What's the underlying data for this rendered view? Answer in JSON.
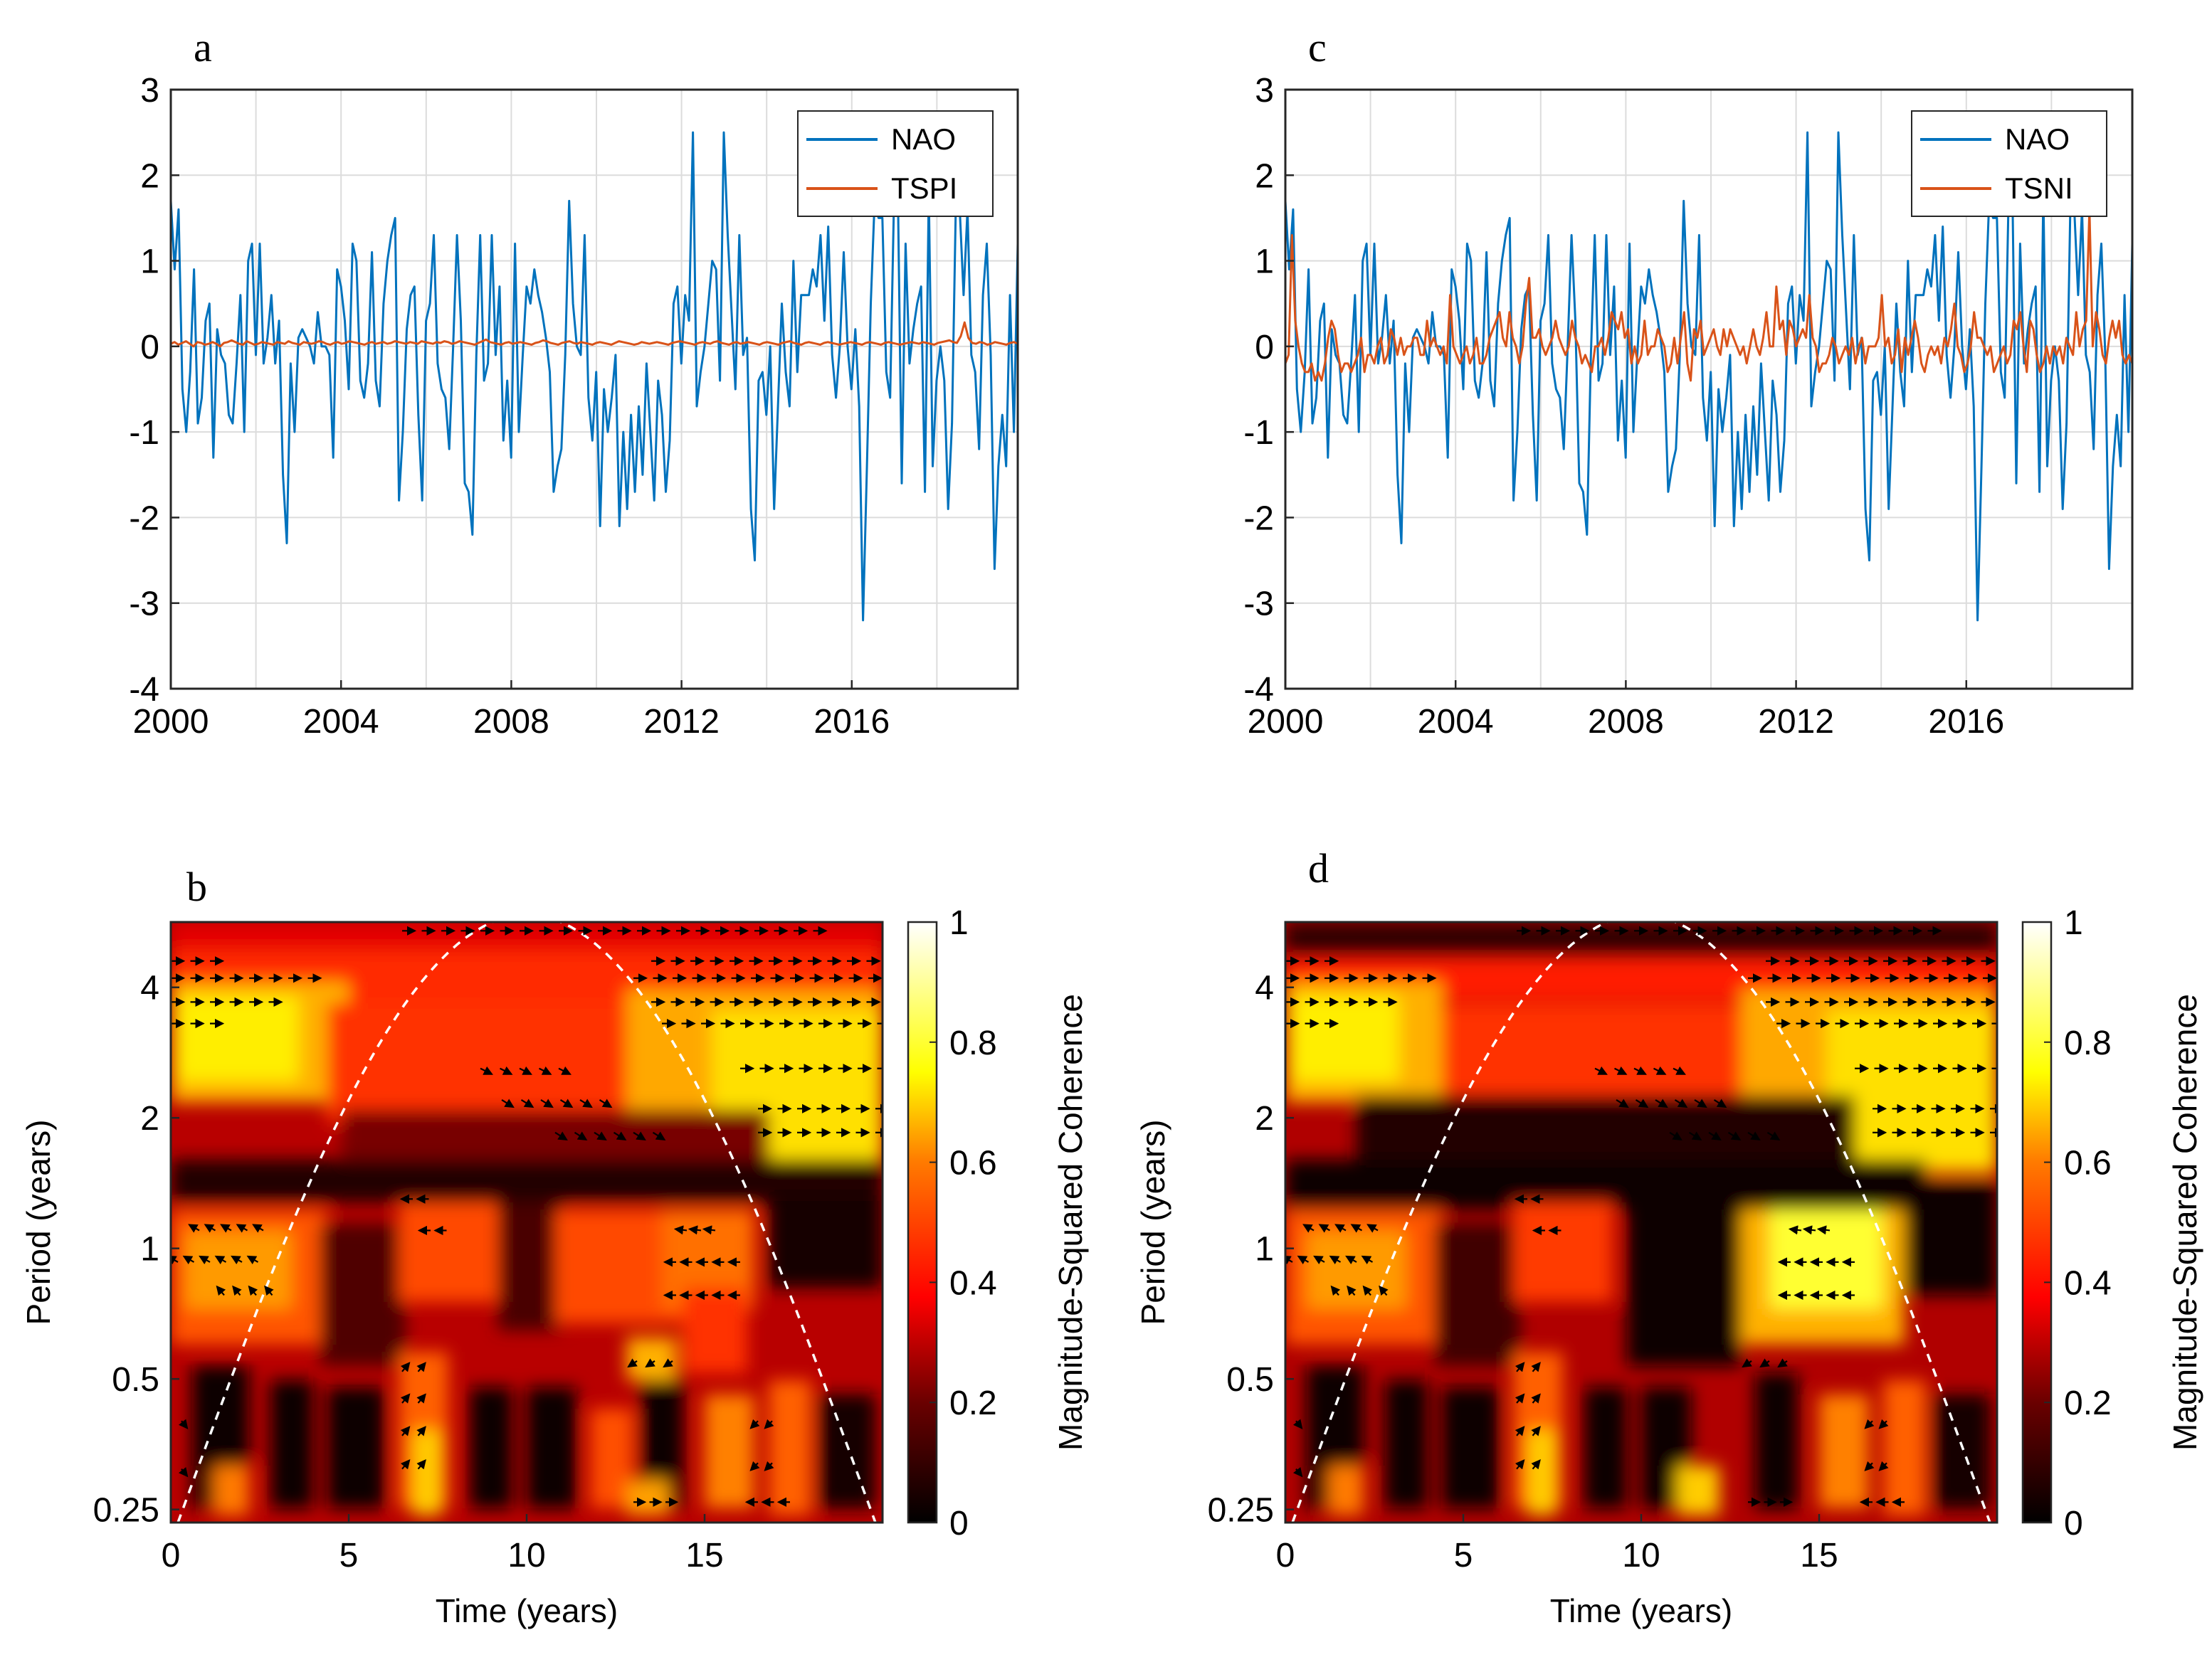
{
  "figure": {
    "description_free": true
  },
  "colors": {
    "nao": "#0072BD",
    "index": "#D95319",
    "grid": "#dcdcdc",
    "cone": "#ffffff"
  },
  "chart_data": [
    {
      "id": "a",
      "panel_label": "a",
      "type": "line",
      "xlim": [
        2000,
        2019.9
      ],
      "ylim": [
        -4,
        3
      ],
      "xticks": [
        2000,
        2004,
        2008,
        2012,
        2016
      ],
      "xtick_labels": [
        "2000",
        "2004",
        "2008",
        "2012",
        "2016"
      ],
      "yticks": [
        -4,
        -3,
        -2,
        -1,
        0,
        1,
        2,
        3
      ],
      "ytick_labels": [
        "-4",
        "-3",
        "-2",
        "-1",
        "0",
        "1",
        "2",
        "3"
      ],
      "grid": true,
      "legend_position": "top-right",
      "series": [
        {
          "name": "NAO",
          "color_key": "nao"
        },
        {
          "name": "TSPI",
          "color_key": "index"
        }
      ]
    },
    {
      "id": "c",
      "panel_label": "c",
      "type": "line",
      "xlim": [
        2000,
        2019.9
      ],
      "ylim": [
        -4,
        3
      ],
      "xticks": [
        2000,
        2004,
        2008,
        2012,
        2016
      ],
      "xtick_labels": [
        "2000",
        "2004",
        "2008",
        "2012",
        "2016"
      ],
      "yticks": [
        -4,
        -3,
        -2,
        -1,
        0,
        1,
        2,
        3
      ],
      "ytick_labels": [
        "-4",
        "-3",
        "-2",
        "-1",
        "0",
        "1",
        "2",
        "3"
      ],
      "grid": true,
      "legend_position": "top-right",
      "series": [
        {
          "name": "NAO",
          "color_key": "nao"
        },
        {
          "name": "TSNI",
          "color_key": "index"
        }
      ]
    },
    {
      "id": "b",
      "panel_label": "b",
      "type": "heatmap",
      "xlabel": "Time (years)",
      "ylabel": "Period (years)",
      "xlim": [
        0,
        20
      ],
      "xticks": [
        0,
        5,
        10,
        15
      ],
      "xtick_labels": [
        "0",
        "5",
        "10",
        "15"
      ],
      "ylim_log2": [
        -2.1,
        2.5
      ],
      "yticks": [
        0.25,
        0.5,
        1,
        2,
        4
      ],
      "ytick_labels": [
        "0.25",
        "0.5",
        "1",
        "2",
        "4"
      ],
      "colorbar_label": "Magnitude-Squared Coherence",
      "colorbar_ticks": [
        0,
        0.2,
        0.4,
        0.6,
        0.8,
        1
      ],
      "colorbar_tick_labels": [
        "0",
        "0.2",
        "0.4",
        "0.6",
        "0.8",
        "1"
      ],
      "cone_of_influence": "dashed white"
    },
    {
      "id": "d",
      "panel_label": "d",
      "type": "heatmap",
      "xlabel": "Time (years)",
      "ylabel": "Period (years)",
      "xlim": [
        0,
        20
      ],
      "xticks": [
        0,
        5,
        10,
        15
      ],
      "xtick_labels": [
        "0",
        "5",
        "10",
        "15"
      ],
      "ylim_log2": [
        -2.1,
        2.5
      ],
      "yticks": [
        0.25,
        0.5,
        1,
        2,
        4
      ],
      "ytick_labels": [
        "0.25",
        "0.5",
        "1",
        "2",
        "4"
      ],
      "colorbar_label": "Magnitude-Squared Coherence",
      "colorbar_ticks": [
        0,
        0.2,
        0.4,
        0.6,
        0.8,
        1
      ],
      "colorbar_tick_labels": [
        "0",
        "0.2",
        "0.4",
        "0.6",
        "0.8",
        "1"
      ],
      "cone_of_influence": "dashed white"
    }
  ],
  "series_values": {
    "nao": [
      1.7,
      0.9,
      1.6,
      -0.5,
      -1.0,
      -0.3,
      0.9,
      -0.9,
      -0.6,
      0.3,
      0.5,
      -1.3,
      0.2,
      -0.1,
      -0.2,
      -0.8,
      -0.9,
      -0.2,
      0.6,
      -1.0,
      1.0,
      1.2,
      -0.1,
      1.2,
      -0.2,
      0.1,
      0.6,
      -0.2,
      0.3,
      -1.5,
      -2.3,
      -0.2,
      -1.0,
      0.1,
      0.2,
      0.1,
      0.0,
      -0.2,
      0.4,
      0.0,
      0.0,
      -0.1,
      -1.3,
      0.9,
      0.7,
      0.3,
      -0.5,
      1.2,
      1.0,
      -0.4,
      -0.6,
      -0.2,
      1.1,
      -0.4,
      -0.7,
      0.5,
      1.0,
      1.3,
      1.5,
      -1.8,
      -1.0,
      0.2,
      0.6,
      0.7,
      -0.8,
      -1.8,
      0.3,
      0.5,
      1.3,
      -0.2,
      -0.5,
      -0.6,
      -1.2,
      0.0,
      1.3,
      0.3,
      -1.6,
      -1.7,
      -2.2,
      -0.1,
      1.3,
      -0.4,
      -0.2,
      1.3,
      -0.1,
      0.7,
      -1.1,
      -0.4,
      -1.3,
      1.2,
      -1.0,
      -0.1,
      0.7,
      0.5,
      0.9,
      0.6,
      0.4,
      0.1,
      -0.3,
      -1.7,
      -1.4,
      -1.2,
      -0.1,
      1.7,
      0.5,
      0.0,
      -0.1,
      1.3,
      -0.6,
      -1.1,
      -0.3,
      -2.1,
      -0.5,
      -1.0,
      -0.6,
      -0.1,
      -2.1,
      -1.0,
      -1.9,
      -0.8,
      -1.7,
      -0.7,
      -1.5,
      -0.2,
      -1.0,
      -1.8,
      -0.4,
      -0.8,
      -1.7,
      -1.1,
      0.5,
      0.7,
      -0.2,
      0.6,
      0.3,
      2.5,
      -0.7,
      -0.3,
      0.0,
      0.5,
      1.0,
      0.9,
      -0.4,
      2.5,
      1.3,
      0.4,
      -0.5,
      1.3,
      -0.1,
      0.1,
      -1.9,
      -2.5,
      -0.4,
      -0.3,
      -0.8,
      0.0,
      -1.9,
      -0.7,
      0.5,
      -0.3,
      -0.7,
      1.0,
      -0.3,
      0.6,
      0.6,
      0.6,
      0.9,
      0.7,
      1.3,
      0.3,
      1.4,
      -0.1,
      -0.6,
      0.0,
      1.1,
      0.0,
      -0.5,
      0.2,
      -0.7,
      -3.2,
      -1.4,
      0.5,
      1.7,
      1.5,
      1.5,
      -0.3,
      -0.6,
      1.7,
      1.8,
      -1.6,
      1.2,
      -0.2,
      0.2,
      0.5,
      0.7,
      -1.7,
      1.8,
      -1.4,
      -0.4,
      0.0,
      -0.4,
      -1.9,
      -0.9,
      1.7,
      1.6,
      0.6,
      1.6,
      -0.1,
      -0.3,
      -1.2,
      0.6,
      1.2,
      -0.1,
      -2.6,
      -1.4,
      -0.8,
      -1.4,
      0.6,
      -1.0,
      1.2
    ],
    "tspi": [
      0.03,
      0.05,
      0.02,
      0.04,
      0.06,
      0.03,
      0.0,
      0.05,
      0.04,
      0.02,
      0.03,
      0.05,
      0.03,
      0.0,
      0.04,
      0.05,
      0.07,
      0.05,
      0.03,
      0.02,
      0.06,
      0.04,
      0.02,
      0.03,
      0.05,
      0.04,
      0.03,
      0.02,
      0.05,
      0.04,
      0.03,
      0.06,
      0.04,
      0.03,
      0.02,
      0.05,
      0.04,
      0.03,
      0.04,
      0.06,
      0.05,
      0.03,
      0.02,
      0.04,
      0.05,
      0.03,
      0.04,
      0.06,
      0.05,
      0.04,
      0.03,
      0.02,
      0.04,
      0.05,
      0.03,
      0.04,
      0.05,
      0.03,
      0.04,
      0.06,
      0.05,
      0.04,
      0.03,
      0.05,
      0.04,
      0.03,
      0.06,
      0.05,
      0.04,
      0.03,
      0.05,
      0.04,
      0.06,
      0.05,
      0.03,
      0.04,
      0.06,
      0.05,
      0.04,
      0.03,
      0.02,
      0.04,
      0.06,
      0.08,
      0.05,
      0.04,
      0.03,
      0.02,
      0.04,
      0.05,
      0.03,
      0.04,
      0.05,
      0.04,
      0.03,
      0.02,
      0.04,
      0.05,
      0.07,
      0.06,
      0.04,
      0.03,
      0.02,
      0.04,
      0.05,
      0.06,
      0.04,
      0.03,
      0.05,
      0.04,
      0.03,
      0.02,
      0.04,
      0.05,
      0.04,
      0.03,
      0.02,
      0.04,
      0.06,
      0.05,
      0.04,
      0.03,
      0.02,
      0.03,
      0.05,
      0.04,
      0.03,
      0.04,
      0.05,
      0.04,
      0.03,
      0.02,
      0.04,
      0.05,
      0.06,
      0.05,
      0.04,
      0.03,
      0.02,
      0.04,
      0.05,
      0.04,
      0.03,
      0.05,
      0.06,
      0.04,
      0.03,
      0.02,
      0.04,
      0.05,
      0.03,
      0.04,
      0.05,
      0.04,
      0.03,
      0.02,
      0.04,
      0.05,
      0.04,
      0.03,
      0.02,
      0.04,
      0.05,
      0.06,
      0.04,
      0.03,
      0.02,
      0.04,
      0.05,
      0.04,
      0.03,
      0.02,
      0.04,
      0.05,
      0.04,
      0.03,
      0.02,
      0.03,
      0.04,
      0.05,
      0.04,
      0.03,
      0.02,
      0.04,
      0.05,
      0.04,
      0.03,
      0.02,
      0.04,
      0.05,
      0.04,
      0.03,
      0.02,
      0.03,
      0.04,
      0.05,
      0.04,
      0.03,
      0.05,
      0.04,
      0.03,
      0.02,
      0.04,
      0.05,
      0.06,
      0.07,
      0.05,
      0.04,
      0.12,
      0.28,
      0.1,
      0.04,
      0.03,
      0.05,
      0.04,
      0.02,
      0.03,
      0.05,
      0.04,
      0.03,
      0.02,
      0.04,
      0.05,
      0.03
    ],
    "tsni": [
      -0.2,
      -0.1,
      1.3,
      0.3,
      0.0,
      -0.2,
      -0.3,
      -0.3,
      -0.2,
      -0.4,
      -0.3,
      -0.4,
      -0.2,
      0.1,
      0.3,
      0.2,
      -0.1,
      -0.3,
      -0.2,
      -0.2,
      -0.3,
      -0.2,
      -0.1,
      0.1,
      -0.3,
      -0.1,
      -0.1,
      -0.2,
      0.0,
      0.1,
      -0.2,
      -0.1,
      0.2,
      0.1,
      -0.1,
      0.1,
      -0.1,
      0.0,
      0.0,
      0.1,
      0.1,
      -0.1,
      -0.1,
      0.3,
      0.0,
      0.1,
      0.0,
      -0.1,
      0.0,
      -0.2,
      0.6,
      0.0,
      -0.1,
      -0.2,
      -0.1,
      0.0,
      -0.2,
      -0.1,
      0.1,
      -0.2,
      -0.2,
      -0.1,
      0.1,
      0.2,
      0.3,
      0.4,
      0.1,
      0.0,
      0.4,
      0.1,
      0.0,
      -0.2,
      0.0,
      0.5,
      0.8,
      0.1,
      0.1,
      0.2,
      0.0,
      -0.1,
      0.0,
      0.1,
      0.3,
      0.1,
      0.0,
      -0.1,
      0.0,
      0.3,
      0.1,
      0.0,
      -0.2,
      -0.1,
      -0.2,
      -0.3,
      0.0,
      0.0,
      0.1,
      -0.1,
      0.1,
      0.4,
      0.3,
      0.2,
      0.4,
      0.1,
      0.2,
      -0.2,
      0.0,
      -0.2,
      -0.1,
      0.3,
      -0.1,
      0.0,
      0.0,
      0.2,
      0.1,
      0.0,
      -0.3,
      -0.2,
      0.1,
      -0.2,
      0.1,
      0.4,
      -0.2,
      -0.4,
      0.2,
      0.1,
      0.3,
      -0.1,
      0.0,
      0.1,
      0.2,
      0.0,
      -0.1,
      0.2,
      0.0,
      0.2,
      0.1,
      0.0,
      -0.1,
      0.0,
      -0.2,
      0.0,
      0.2,
      0.0,
      -0.1,
      0.1,
      0.4,
      0.0,
      0.0,
      0.7,
      0.2,
      0.3,
      -0.1,
      0.3,
      0.2,
      0.0,
      0.1,
      0.2,
      0.1,
      0.6,
      0.1,
      0.0,
      -0.3,
      -0.2,
      -0.2,
      -0.1,
      0.1,
      0.0,
      -0.2,
      -0.1,
      0.0,
      -0.1,
      0.1,
      -0.2,
      0.0,
      0.1,
      -0.2,
      0.0,
      0.0,
      0.0,
      0.1,
      0.6,
      0.0,
      0.1,
      -0.2,
      -0.1,
      0.2,
      -0.3,
      0.1,
      -0.1,
      0.1,
      0.3,
      0.1,
      -0.2,
      -0.3,
      -0.1,
      0.0,
      -0.1,
      0.0,
      -0.2,
      0.1,
      0.0,
      0.2,
      0.5,
      0.0,
      -0.1,
      -0.3,
      -0.2,
      0.0,
      0.4,
      0.1,
      0.1,
      0.0,
      -0.1,
      0.0,
      -0.3,
      -0.2,
      -0.1,
      0.0,
      -0.2,
      -0.1,
      0.3,
      0.2,
      0.4,
      0.0,
      -0.3,
      0.3,
      0.2,
      -0.1,
      -0.3,
      -0.2,
      0.0,
      -0.2,
      0.0,
      -0.1,
      0.0,
      -0.2,
      0.1,
      0.0,
      -0.1,
      0.4,
      0.0,
      0.2,
      0.3,
      1.6,
      0.0,
      0.4,
      0.2,
      -0.1,
      -0.2,
      0.1,
      0.3,
      0.1,
      0.3,
      -0.1,
      -0.2,
      -0.1,
      -0.2
    ]
  }
}
